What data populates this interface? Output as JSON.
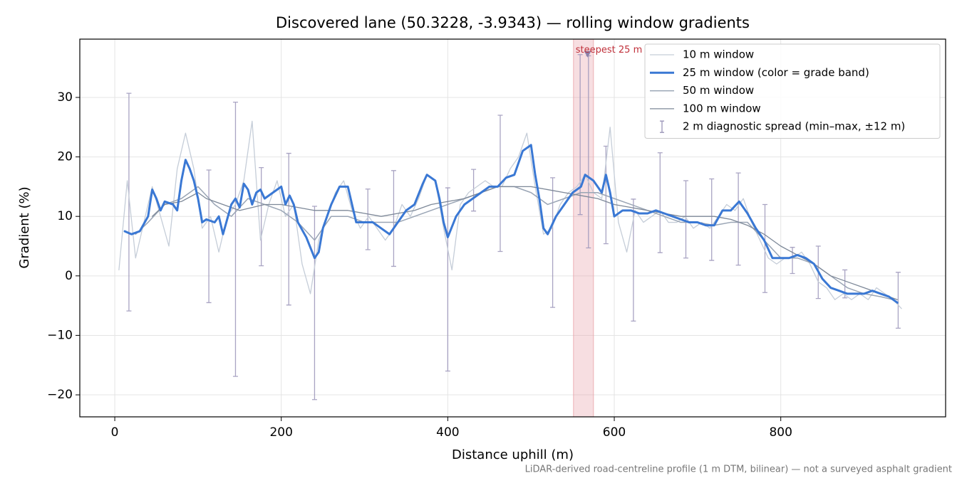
{
  "chart_data": {
    "type": "line",
    "title": "Discovered lane (50.3228, -3.9343) — rolling window gradients",
    "xlabel": "Distance uphill (m)",
    "ylabel": "Gradient (%)",
    "footnote": "LiDAR-derived road-centreline profile (1 m DTM, bilinear) — not a surveyed asphalt gradient",
    "xlim": [
      -42,
      998
    ],
    "ylim": [
      -23.7,
      39.8
    ],
    "xticks": [
      0,
      200,
      400,
      600,
      800
    ],
    "yticks": [
      {
        "value": -20,
        "label": "−20"
      },
      {
        "value": -10,
        "label": "−10"
      },
      0,
      10,
      20,
      30
    ],
    "grid": true,
    "legend": "upper right",
    "highlight": {
      "x": [
        551,
        575
      ],
      "color": "#e8a0a8"
    },
    "annotation": {
      "text": "steepest 25 m",
      "x": 568,
      "y": 37.2,
      "color": "#c0303a",
      "marker_color": "#8a7fa8"
    },
    "series": [
      {
        "name": "10 m window",
        "color": "#c5cdd8",
        "width": 1.3,
        "x": [
          5,
          15,
          25,
          35,
          45,
          55,
          65,
          75,
          85,
          95,
          105,
          115,
          125,
          135,
          145,
          155,
          165,
          175,
          185,
          195,
          205,
          215,
          225,
          235,
          245,
          255,
          265,
          275,
          285,
          295,
          305,
          315,
          325,
          335,
          345,
          355,
          365,
          375,
          385,
          395,
          405,
          415,
          425,
          435,
          445,
          455,
          465,
          475,
          485,
          495,
          505,
          515,
          525,
          535,
          545,
          555,
          565,
          575,
          585,
          595,
          605,
          615,
          625,
          635,
          645,
          655,
          665,
          675,
          685,
          695,
          705,
          715,
          725,
          735,
          745,
          755,
          765,
          775,
          785,
          795,
          805,
          815,
          825,
          835,
          845,
          855,
          865,
          875,
          885,
          895,
          905,
          915,
          925,
          935,
          945
        ],
        "values": [
          1,
          16,
          3,
          9,
          15,
          10,
          5,
          18,
          24,
          18,
          8,
          10,
          4,
          10,
          12,
          16,
          26,
          6,
          12,
          16,
          10,
          12,
          2,
          -3,
          6,
          10,
          14,
          16,
          11,
          8,
          10,
          8,
          6,
          8,
          12,
          10,
          13,
          17,
          16,
          8,
          1,
          12,
          14,
          15,
          16,
          15,
          15,
          18,
          20,
          24,
          15,
          7,
          8,
          12,
          14,
          15,
          17,
          14,
          13,
          25,
          9,
          4,
          11,
          9,
          10,
          11,
          9,
          9,
          10,
          8,
          9,
          8,
          10,
          12,
          11,
          13,
          9,
          6,
          3,
          2,
          3,
          3,
          4,
          2,
          -1,
          -2,
          -4,
          -3,
          -4,
          -3,
          -4,
          -2,
          -3,
          -4,
          -5.5
        ]
      },
      {
        "name": "25 m window (color = grade band)",
        "color": "#3a78d4",
        "width": 3,
        "x": [
          12,
          20,
          30,
          40,
          45,
          50,
          55,
          60,
          70,
          75,
          80,
          85,
          90,
          95,
          100,
          105,
          110,
          120,
          125,
          130,
          140,
          145,
          150,
          155,
          160,
          165,
          170,
          175,
          180,
          190,
          200,
          205,
          210,
          215,
          220,
          230,
          240,
          245,
          250,
          260,
          270,
          280,
          285,
          290,
          300,
          310,
          320,
          330,
          340,
          350,
          360,
          370,
          375,
          385,
          390,
          395,
          400,
          410,
          420,
          430,
          440,
          450,
          460,
          470,
          480,
          490,
          500,
          505,
          510,
          515,
          520,
          530,
          540,
          550,
          560,
          565,
          575,
          585,
          590,
          595,
          600,
          610,
          620,
          630,
          640,
          650,
          660,
          670,
          680,
          690,
          700,
          710,
          720,
          730,
          740,
          750,
          760,
          770,
          780,
          790,
          800,
          810,
          820,
          830,
          840,
          850,
          860,
          870,
          880,
          890,
          900,
          910,
          920,
          930,
          940
        ],
        "values": [
          7.5,
          7,
          7.5,
          10,
          14.5,
          13,
          11,
          12.5,
          12,
          11,
          16,
          19.5,
          18,
          16,
          13,
          9,
          9.5,
          9,
          10,
          7,
          12,
          13,
          11.5,
          15.5,
          14.5,
          12,
          14,
          14.5,
          13,
          14,
          15,
          12,
          13.5,
          12,
          9,
          6.5,
          3,
          4,
          8,
          12,
          15,
          15,
          12,
          9,
          9,
          9,
          8,
          7,
          9,
          11,
          12,
          15.5,
          17,
          16,
          13,
          9,
          6.5,
          10,
          12,
          13,
          14,
          15,
          15,
          16.5,
          17,
          21,
          22,
          17,
          13,
          8,
          7,
          10,
          12,
          14,
          15,
          17,
          16,
          14,
          17,
          14,
          10,
          11,
          11,
          10.5,
          10.5,
          11,
          10.5,
          10,
          9.5,
          9,
          9,
          8.5,
          8.5,
          11,
          11,
          12.5,
          10.5,
          8,
          6,
          3,
          3,
          3,
          3.5,
          3,
          2,
          -0.5,
          -2,
          -2.5,
          -3,
          -3,
          -3,
          -2.5,
          -3,
          -3.5,
          -4.5
        ]
      },
      {
        "name": "50 m window",
        "color": "#9aa5b5",
        "width": 1.5,
        "x": [
          25,
          40,
          60,
          80,
          100,
          120,
          140,
          160,
          180,
          200,
          220,
          240,
          260,
          280,
          300,
          320,
          340,
          360,
          380,
          400,
          420,
          440,
          460,
          480,
          500,
          520,
          540,
          560,
          580,
          600,
          620,
          640,
          660,
          680,
          700,
          720,
          740,
          760,
          780,
          800,
          820,
          840,
          860,
          880,
          900,
          920,
          935
        ],
        "values": [
          7,
          9,
          12,
          13,
          15,
          12,
          10,
          13,
          12,
          11,
          9,
          6,
          10,
          10,
          9,
          9,
          9,
          10,
          11,
          12,
          13,
          14,
          15,
          15,
          14,
          12,
          13,
          14,
          14,
          13,
          12,
          11,
          10,
          9,
          9,
          8.5,
          9,
          9,
          6,
          3,
          3,
          2,
          0,
          -2,
          -3,
          -3.5,
          -4
        ]
      },
      {
        "name": "100 m window",
        "color": "#7d8898",
        "width": 1.3,
        "x": [
          45,
          60,
          80,
          100,
          110,
          130,
          150,
          180,
          200,
          220,
          240,
          260,
          280,
          300,
          320,
          340,
          360,
          380,
          400,
          420,
          440,
          460,
          480,
          500,
          520,
          540,
          560,
          580,
          600,
          620,
          640,
          660,
          680,
          700,
          720,
          740,
          760,
          780,
          800,
          820,
          840,
          860,
          880,
          900,
          920,
          940
        ],
        "values": [
          10,
          12,
          12.5,
          14,
          13,
          12,
          11,
          12,
          12,
          11.5,
          11,
          11,
          11,
          10.5,
          10,
          10.5,
          11,
          12,
          12.5,
          13,
          14,
          15,
          15,
          15,
          14.5,
          14,
          13.5,
          13,
          12,
          11.5,
          11,
          10.5,
          10,
          10,
          10,
          9.5,
          8.5,
          7,
          5,
          3.5,
          2,
          0,
          -1,
          -2,
          -3,
          -4
        ]
      }
    ],
    "errorbars": {
      "name": "2 m diagnostic spread (min–max, ±12 m)",
      "color": "#9a94b8",
      "x": [
        17,
        113,
        145,
        176,
        209,
        240,
        304,
        335,
        400,
        431,
        463,
        526,
        559,
        569,
        590,
        623,
        655,
        686,
        717,
        749,
        781,
        814,
        845,
        877,
        941
      ],
      "min": [
        -5.9,
        -4.5,
        -16.9,
        1.7,
        -4.9,
        -20.8,
        4.4,
        1.6,
        -16.0,
        10.9,
        4.1,
        -5.3,
        10.3,
        4.7,
        5.4,
        -7.6,
        3.9,
        3.0,
        2.6,
        1.8,
        -2.8,
        0.4,
        -3.8,
        -3.7,
        -8.8
      ],
      "max": [
        30.7,
        17.8,
        29.2,
        18.2,
        20.6,
        11.7,
        14.6,
        17.7,
        14.8,
        17.9,
        27.0,
        16.5,
        37.2,
        37.0,
        21.8,
        12.9,
        20.7,
        16.0,
        16.3,
        17.3,
        12.0,
        4.8,
        5.0,
        1.0,
        0.6
      ]
    }
  }
}
